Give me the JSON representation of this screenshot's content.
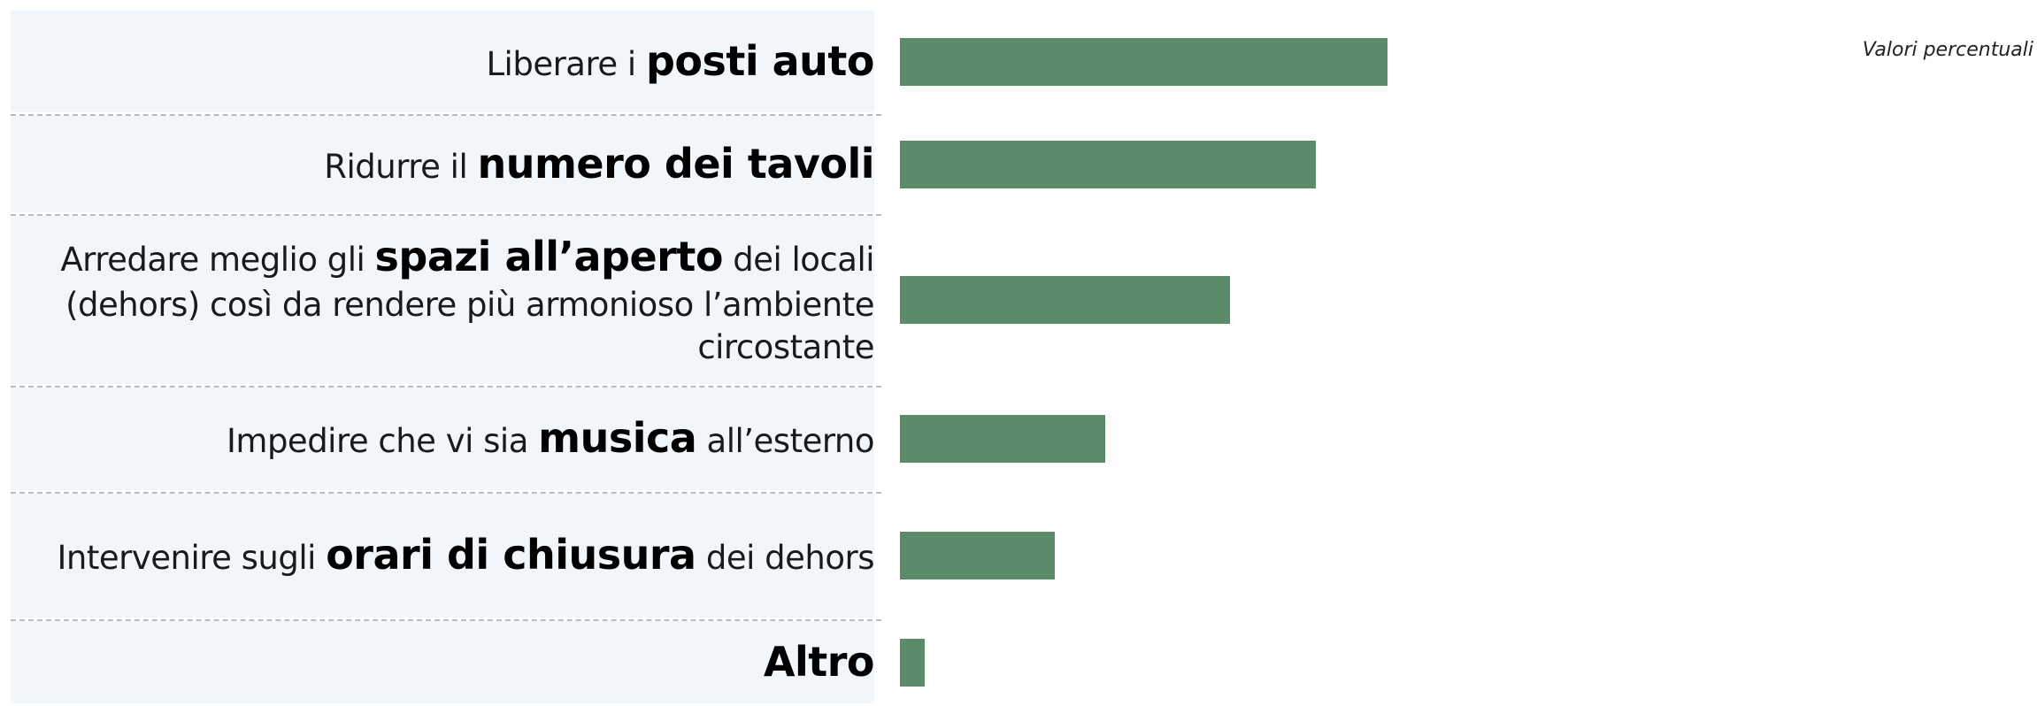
{
  "chart_data": {
    "type": "bar",
    "orientation": "horizontal",
    "note": "Valori percentuali",
    "color": "#5b8c69",
    "categories": [
      [
        {
          "text": "Liberare i ",
          "bold": false
        },
        {
          "text": "posti auto",
          "bold": true
        }
      ],
      [
        {
          "text": "Ridurre il ",
          "bold": false
        },
        {
          "text": "numero dei tavoli",
          "bold": true
        }
      ],
      [
        {
          "text": "Arredare meglio gli ",
          "bold": false
        },
        {
          "text": "spazi all’aperto",
          "bold": true
        },
        {
          "text": " dei locali (dehors) così da rendere più armonioso l’ambiente circostante",
          "bold": false
        }
      ],
      [
        {
          "text": "Impedire che vi sia ",
          "bold": false
        },
        {
          "text": "musica",
          "bold": true
        },
        {
          "text": " all’esterno",
          "bold": false
        }
      ],
      [
        {
          "text": "Intervenire sugli ",
          "bold": false
        },
        {
          "text": "orari di chiusura",
          "bold": true
        },
        {
          "text": " dei dehors",
          "bold": false
        }
      ],
      [
        {
          "text": "Altro",
          "bold": true
        }
      ]
    ],
    "values": [
      37.5,
      32,
      25.4,
      15.8,
      11.9,
      1.9
    ]
  }
}
